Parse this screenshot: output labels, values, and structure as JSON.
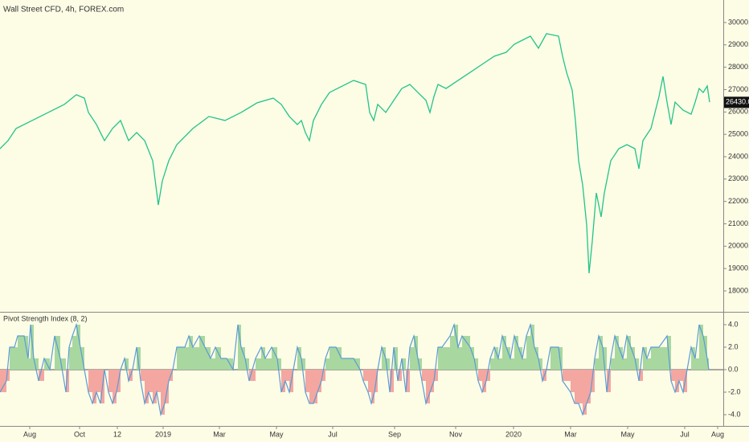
{
  "chart_data": [
    {
      "type": "line",
      "title": "Wall Street CFD, 4h, FOREX.com",
      "x": [
        0,
        10,
        20,
        40,
        60,
        80,
        95,
        105,
        110,
        120,
        130,
        140,
        150,
        160,
        170,
        180,
        190,
        197,
        202,
        210,
        220,
        240,
        260,
        280,
        300,
        320,
        340,
        350,
        360,
        370,
        375,
        380,
        385,
        390,
        400,
        410,
        420,
        430,
        440,
        455,
        460,
        465,
        470,
        480,
        490,
        500,
        510,
        520,
        530,
        535,
        540,
        545,
        555,
        570,
        585,
        600,
        615,
        630,
        640,
        650,
        660,
        670,
        680,
        695,
        700,
        705,
        712,
        716,
        720,
        725,
        730,
        733,
        737,
        742,
        748,
        752,
        760,
        770,
        780,
        790,
        795,
        800,
        810,
        820,
        825,
        830,
        835,
        840,
        850,
        860,
        865,
        870,
        875,
        880,
        883
      ],
      "series": [
        {
          "color": "#22c38a",
          "values": [
            24360,
            24720,
            25260,
            25620,
            25980,
            26340,
            26770,
            26620,
            25980,
            25440,
            24720,
            25260,
            25620,
            24720,
            25080,
            24720,
            23820,
            21840,
            22920,
            23820,
            24540,
            25260,
            25800,
            25620,
            25980,
            26410,
            26620,
            26340,
            25800,
            25440,
            25620,
            25080,
            24720,
            25620,
            26340,
            26870,
            27050,
            27230,
            27410,
            27230,
            25980,
            25620,
            26340,
            25980,
            26520,
            27050,
            27230,
            26870,
            26520,
            25980,
            26690,
            27230,
            27050,
            27410,
            27770,
            28130,
            28490,
            28670,
            29030,
            29210,
            29390,
            28850,
            29500,
            29390,
            28490,
            27770,
            26980,
            25620,
            23820,
            22740,
            20950,
            18790,
            20230,
            22380,
            21310,
            22380,
            23820,
            24360,
            24540,
            24360,
            23460,
            24720,
            25260,
            26690,
            27590,
            26440,
            25440,
            26440,
            26080,
            25900,
            26440,
            27050,
            26870,
            27160,
            26440
          ]
        }
      ],
      "xlim": [
        0,
        900
      ],
      "ylim": [
        17066,
        31006
      ],
      "yticks": [
        {
          "value": 18000,
          "label": "18000.0"
        },
        {
          "value": 19000,
          "label": "19000.0"
        },
        {
          "value": 20000,
          "label": "20000.0"
        },
        {
          "value": 21000,
          "label": "21000.0"
        },
        {
          "value": 22000,
          "label": "22000.0"
        },
        {
          "value": 23000,
          "label": "23000.0"
        },
        {
          "value": 24000,
          "label": "24000.0"
        },
        {
          "value": 25000,
          "label": "25000.0"
        },
        {
          "value": 26000,
          "label": "26000.0"
        },
        {
          "value": 27000,
          "label": "27000.0"
        },
        {
          "value": 28000,
          "label": "28000.0"
        },
        {
          "value": 29000,
          "label": "29000.0"
        },
        {
          "value": 30000,
          "label": "30000.0"
        }
      ],
      "last_price": {
        "value": 26430,
        "label": "26430.0"
      }
    },
    {
      "type": "step-area",
      "title": "Pivot Strength Index (8, 2)",
      "x": [
        0,
        8,
        12,
        18,
        22,
        30,
        35,
        38,
        42,
        48,
        55,
        62,
        68,
        75,
        82,
        86,
        90,
        95,
        100,
        105,
        110,
        115,
        120,
        125,
        130,
        135,
        140,
        145,
        150,
        155,
        160,
        165,
        170,
        175,
        180,
        185,
        190,
        195,
        200,
        205,
        210,
        215,
        220,
        230,
        235,
        240,
        248,
        255,
        262,
        268,
        275,
        282,
        290,
        296,
        300,
        305,
        310,
        318,
        325,
        330,
        338,
        345,
        350,
        355,
        360,
        365,
        370,
        375,
        380,
        385,
        390,
        395,
        400,
        405,
        410,
        418,
        425,
        430,
        440,
        448,
        452,
        458,
        462,
        466,
        470,
        475,
        480,
        485,
        490,
        495,
        500,
        505,
        510,
        515,
        520,
        525,
        530,
        535,
        540,
        545,
        550,
        560,
        565,
        570,
        575,
        585,
        590,
        595,
        600,
        605,
        610,
        615,
        620,
        625,
        630,
        635,
        640,
        645,
        650,
        655,
        660,
        665,
        670,
        675,
        680,
        685,
        695,
        700,
        710,
        715,
        720,
        725,
        730,
        735,
        740,
        745,
        750,
        755,
        760,
        765,
        770,
        775,
        780,
        785,
        790,
        795,
        800,
        805,
        810,
        820,
        830,
        835,
        840,
        845,
        850,
        855,
        860,
        865,
        870,
        875,
        880,
        882
      ],
      "values": [
        -2,
        -1,
        2,
        2,
        3,
        3,
        1,
        4,
        1,
        -1,
        1,
        0,
        3,
        1,
        -2,
        2,
        3,
        4,
        2,
        0,
        -2,
        -3,
        -2,
        -3,
        0,
        -2,
        -3,
        -2,
        0,
        1,
        -1,
        0,
        2,
        -1,
        -3,
        -2,
        -3,
        -2,
        -4,
        -3,
        -1,
        0,
        2,
        2,
        3,
        2,
        3,
        2,
        1,
        2,
        1,
        1,
        0,
        4,
        2,
        1,
        -1,
        1,
        2,
        1,
        2,
        1,
        -2,
        -1,
        -2,
        0,
        2,
        1,
        -2,
        -3,
        -3,
        -2,
        -1,
        1,
        2,
        2,
        1,
        1,
        1,
        0,
        -1,
        -2,
        -3,
        -2,
        0,
        2,
        1,
        -2,
        2,
        -1,
        1,
        -2,
        2,
        3,
        1,
        -1,
        -3,
        -2,
        -1,
        2,
        2,
        3,
        4,
        2,
        3,
        2,
        1,
        -1,
        -2,
        -1,
        1,
        2,
        1,
        3,
        2,
        1,
        3,
        2,
        1,
        3,
        4,
        2,
        1,
        -1,
        0,
        2,
        2,
        -1,
        -2,
        -3,
        -3,
        -4,
        -3,
        -2,
        1,
        3,
        2,
        -2,
        1,
        3,
        2,
        1,
        3,
        2,
        1,
        -1,
        2,
        1,
        2,
        2,
        3,
        -1,
        -2,
        -1,
        -2,
        0,
        2,
        1,
        4,
        3,
        1,
        0
      ],
      "line_color": "#5b9bd5",
      "positive_color": "#a8d8a0",
      "negative_color": "#f4a6a0",
      "xlim": [
        0,
        900
      ],
      "ylim": [
        -5,
        5.14
      ],
      "yticks": [
        {
          "value": 4,
          "label": "4.0"
        },
        {
          "value": 2,
          "label": "2.0"
        },
        {
          "value": 0,
          "label": "0.0"
        },
        {
          "value": -2,
          "label": "-2.0"
        },
        {
          "value": -4,
          "label": "-4.0"
        }
      ],
      "xticks": [
        {
          "value": 37,
          "label": "Aug"
        },
        {
          "value": 99,
          "label": "Oct"
        },
        {
          "value": 146,
          "label": "12"
        },
        {
          "value": 203,
          "label": "2019"
        },
        {
          "value": 273,
          "label": "Mar"
        },
        {
          "value": 344,
          "label": "May"
        },
        {
          "value": 414,
          "label": "Jul"
        },
        {
          "value": 491,
          "label": "Sep"
        },
        {
          "value": 567,
          "label": "Nov"
        },
        {
          "value": 639,
          "label": "2020"
        },
        {
          "value": 710,
          "label": "Mar"
        },
        {
          "value": 781,
          "label": "May"
        },
        {
          "value": 852,
          "label": "Jul"
        },
        {
          "value": 893,
          "label": "Aug"
        }
      ]
    }
  ]
}
